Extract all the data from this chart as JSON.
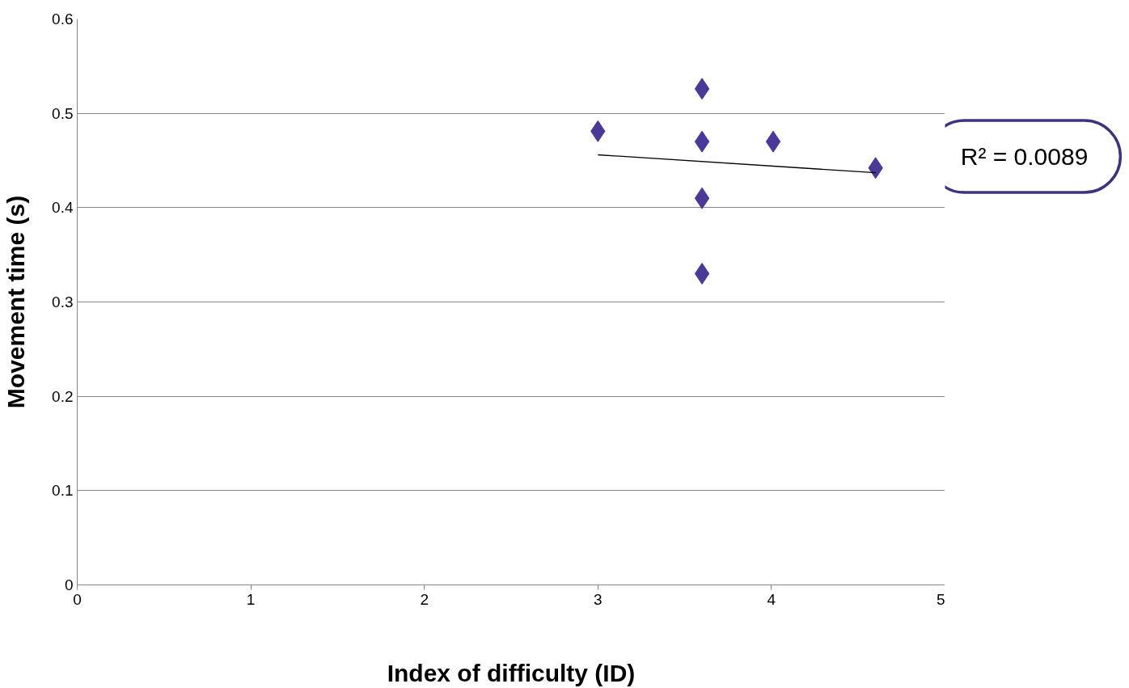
{
  "chart_data": {
    "type": "scatter",
    "xlabel": "Index of difficulty (ID)",
    "ylabel": "Movement time (s)",
    "series": [
      {
        "color": "#4b3897",
        "marker": "diamond",
        "x": [
          3.0,
          3.6,
          3.6,
          3.6,
          3.6,
          4.01,
          4.6
        ],
        "values": [
          0.481,
          0.526,
          0.47,
          0.41,
          0.33,
          0.47,
          0.442
        ]
      },
      {
        "type": "line",
        "color": "#000000",
        "x": [
          3.0,
          4.6
        ],
        "values": [
          0.456,
          0.437
        ]
      }
    ],
    "grid": "y",
    "xlim": [
      0,
      5
    ],
    "xticks": [
      0,
      1,
      2,
      3,
      4,
      5
    ],
    "ylim": [
      0,
      0.6
    ],
    "yticks": [
      0,
      0.1,
      0.2,
      0.3,
      0.4,
      0.5,
      0.6
    ],
    "annotations": [
      "R² = 0.0089"
    ]
  }
}
